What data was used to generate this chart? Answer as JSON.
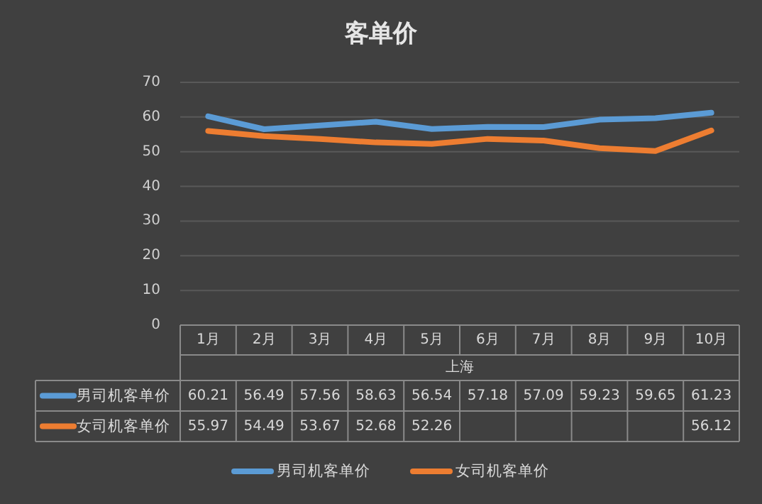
{
  "chart_data": {
    "type": "line",
    "title": "客单价",
    "xlabel": "上海",
    "categories": [
      "1月",
      "2月",
      "3月",
      "4月",
      "5月",
      "6月",
      "7月",
      "8月",
      "9月",
      "10月"
    ],
    "series": [
      {
        "name": "男司机客单价",
        "color": "#5b9bd5",
        "values": [
          60.21,
          56.49,
          57.56,
          58.63,
          56.54,
          57.18,
          57.09,
          59.23,
          59.65,
          61.23
        ]
      },
      {
        "name": "女司机客单价",
        "color": "#ed7d31",
        "values": [
          55.97,
          54.49,
          53.67,
          52.68,
          52.26,
          53.7,
          53.2,
          51.0,
          50.2,
          56.12
        ],
        "value_labels": [
          "55.97",
          "54.49",
          "53.67",
          "52.68",
          "52.26",
          null,
          null,
          null,
          null,
          "56.12"
        ]
      }
    ],
    "ylim": [
      0,
      70
    ],
    "yticks": [
      0,
      10,
      20,
      30,
      40,
      50,
      60,
      70
    ],
    "grid": "y",
    "legend": "bottom",
    "data_labels": true
  }
}
